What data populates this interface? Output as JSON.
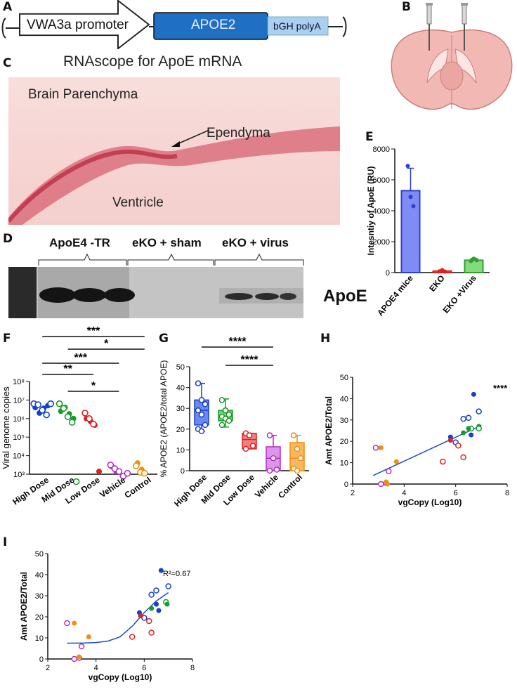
{
  "panels": {
    "A": {
      "label": "A",
      "promoter": "VWA3a promoter",
      "gene": "APOE2",
      "polya": "bGH polyA",
      "colors": {
        "gene": "#1f6fc4",
        "polya": "#a9d0ee"
      }
    },
    "B": {
      "label": "B"
    },
    "C": {
      "label": "C",
      "title": "RNAscope for ApoE mRNA",
      "parenchyma": "Brain Parenchyma",
      "ependyma": "Ependyma",
      "ventricle": "Ventricle"
    },
    "D": {
      "label": "D",
      "groups": [
        "ApoE4 -TR",
        "eKO + sham",
        "eKO + virus"
      ],
      "band_label": "ApoE"
    },
    "E": {
      "label": "E"
    },
    "F": {
      "label": "F",
      "sig": [
        "***",
        "*",
        "***",
        "**",
        "*"
      ]
    },
    "G": {
      "label": "G",
      "sig": [
        "****",
        "****"
      ]
    },
    "H": {
      "label": "H",
      "sig": "****"
    },
    "I": {
      "label": "I",
      "r2": "R²=0.67"
    }
  },
  "chart_data": [
    {
      "id": "E",
      "type": "bar",
      "ylabel": "Intesntiy of ApoE (RU)",
      "categories": [
        "APOE4 mice",
        "EKO",
        "EKO +Virus"
      ],
      "values": [
        5300,
        100,
        800
      ],
      "errors": [
        1450,
        60,
        120
      ],
      "points": [
        [
          6900,
          4900,
          4300
        ],
        [
          80,
          160,
          60
        ],
        [
          750,
          900,
          800
        ]
      ],
      "colors": [
        "#2b3fd0",
        "#e02020",
        "#2fa02f"
      ],
      "fills": [
        "#7f8cf4",
        "#f08080",
        "#86d97c"
      ],
      "ylim": [
        0,
        8000
      ],
      "yticks": [
        "0",
        "2000",
        "4000",
        "6000",
        "8000"
      ]
    },
    {
      "id": "F",
      "type": "scatter",
      "ylabel": "Viral genome copies",
      "yscale": "log",
      "categories": [
        "High Dose",
        "Mid Dose",
        "Low Dose",
        "Vehicle",
        "Control"
      ],
      "yticks": [
        "10³",
        "10⁴",
        "10⁵",
        "10⁶",
        "10⁷",
        "10⁸"
      ],
      "colors": [
        "#1540c8",
        "#1a9a2a",
        "#e02020",
        "#b030c0",
        "#f0900a"
      ],
      "groups": [
        {
          "filled": [
            6.6,
            6.3,
            6.55,
            6.7
          ],
          "open": [
            6.8,
            6.75,
            6.45,
            6.2,
            6.8
          ]
        },
        {
          "filled": [
            6.4,
            6.6,
            6.25,
            6.0
          ],
          "open": [
            6.8,
            6.55,
            6.1,
            5.8,
            2.6
          ]
        },
        {
          "filled": [
            6.0,
            5.85,
            5.65,
            3.15
          ],
          "open": [
            6.3,
            6.0,
            5.7
          ]
        },
        {
          "filled": [
            3.4,
            3.15
          ],
          "open": [
            3.5,
            3.3,
            3.15,
            2.9,
            3.05
          ]
        },
        {
          "filled": [
            3.6,
            3.25
          ],
          "open": [
            3.45,
            3.1,
            3.05
          ]
        }
      ]
    },
    {
      "id": "G",
      "type": "box",
      "ylabel": "% APOE2 (APOE2/total APOE)",
      "categories": [
        "High Dose",
        "Mid Dose",
        "Low Dose",
        "Vehicle",
        "Control"
      ],
      "ylim": [
        0,
        50
      ],
      "yticks": [
        "0",
        "10",
        "20",
        "30",
        "40",
        "50"
      ],
      "colors": [
        "#1540c8",
        "#1a9a2a",
        "#e02020",
        "#b030c0",
        "#f0900a"
      ],
      "fills": [
        "#6d88ee",
        "#6cd37c",
        "#f27f7f",
        "#dd94ea",
        "#f7b766"
      ],
      "boxes": [
        {
          "min": 19,
          "q1": 22,
          "median": 29,
          "q3": 34,
          "max": 42,
          "points": [
            42,
            34,
            32,
            29,
            27,
            22,
            20,
            19
          ]
        },
        {
          "min": 21,
          "q1": 24,
          "median": 26,
          "q3": 29,
          "max": 34.5,
          "points": [
            34,
            29,
            27,
            26,
            25,
            24,
            22
          ]
        },
        {
          "min": 10.5,
          "q1": 10.5,
          "median": 15,
          "q3": 18,
          "max": 18,
          "points": [
            18,
            17,
            12,
            10.5
          ]
        },
        {
          "min": 0,
          "q1": 0,
          "median": 6,
          "q3": 11.5,
          "max": 17,
          "points": [
            17,
            6,
            0.5,
            0
          ]
        },
        {
          "min": 0,
          "q1": 0,
          "median": 6,
          "q3": 13.5,
          "max": 17,
          "points": [
            17,
            10.5,
            6,
            1,
            0
          ]
        }
      ]
    },
    {
      "id": "H",
      "type": "scatter",
      "xlabel": "vgCopy (Log10)",
      "ylabel": "Amt APOE2/Total",
      "xlim": [
        2,
        8
      ],
      "ylim": [
        0,
        50
      ],
      "xticks": [
        "2",
        "4",
        "6",
        "8"
      ],
      "yticks": [
        "0",
        "10",
        "20",
        "30",
        "40",
        "50"
      ],
      "points": [
        {
          "x": 6.7,
          "y": 42,
          "c": "#1540c8",
          "f": true
        },
        {
          "x": 6.5,
          "y": 31,
          "c": "#1540c8",
          "f": false
        },
        {
          "x": 6.9,
          "y": 34,
          "c": "#1540c8",
          "f": false
        },
        {
          "x": 6.3,
          "y": 30.5,
          "c": "#1540c8",
          "f": false
        },
        {
          "x": 6.5,
          "y": 26,
          "c": "#1540c8",
          "f": true
        },
        {
          "x": 6.6,
          "y": 23,
          "c": "#1540c8",
          "f": true
        },
        {
          "x": 5.8,
          "y": 22,
          "c": "#1540c8",
          "f": true
        },
        {
          "x": 6.0,
          "y": 19.5,
          "c": "#1540c8",
          "f": false
        },
        {
          "x": 6.9,
          "y": 27,
          "c": "#1a9a2a",
          "f": true
        },
        {
          "x": 6.9,
          "y": 26,
          "c": "#1a9a2a",
          "f": false
        },
        {
          "x": 6.6,
          "y": 26,
          "c": "#1a9a2a",
          "f": false
        },
        {
          "x": 6.5,
          "y": 26,
          "c": "#1a9a2a",
          "f": true
        },
        {
          "x": 6.3,
          "y": 24,
          "c": "#1a9a2a",
          "f": true
        },
        {
          "x": 5.8,
          "y": 20.5,
          "c": "#e02020",
          "f": true
        },
        {
          "x": 6.1,
          "y": 18,
          "c": "#e02020",
          "f": false
        },
        {
          "x": 6.3,
          "y": 12.5,
          "c": "#e02020",
          "f": false
        },
        {
          "x": 5.5,
          "y": 10.5,
          "c": "#e02020",
          "f": false
        },
        {
          "x": 2.9,
          "y": 17,
          "c": "#b030c0",
          "f": false
        },
        {
          "x": 3.4,
          "y": 6,
          "c": "#b030c0",
          "f": false
        },
        {
          "x": 3.1,
          "y": 0,
          "c": "#b030c0",
          "f": false
        },
        {
          "x": 3.3,
          "y": 0.5,
          "c": "#b030c0",
          "f": false
        },
        {
          "x": 3.1,
          "y": 17,
          "c": "#f0900a",
          "f": true
        },
        {
          "x": 3.7,
          "y": 10.5,
          "c": "#f0900a",
          "f": true
        },
        {
          "x": 3.3,
          "y": 1,
          "c": "#f0900a",
          "f": true
        },
        {
          "x": 3.35,
          "y": 0,
          "c": "#f0900a",
          "f": true
        }
      ],
      "fit": {
        "x": [
          2.8,
          7.0
        ],
        "y": [
          4,
          27.5
        ],
        "color": "#1a4ec8"
      }
    },
    {
      "id": "I",
      "type": "scatter",
      "xlabel": "vgCopy (Log10)",
      "ylabel": "Amt APOE2/Total",
      "xlim": [
        2,
        8
      ],
      "ylim": [
        0,
        50
      ],
      "xticks": [
        "2",
        "4",
        "6",
        "8"
      ],
      "yticks": [
        "0",
        "10",
        "20",
        "30",
        "40",
        "50"
      ],
      "points": [
        {
          "x": 6.7,
          "y": 42,
          "c": "#1540c8",
          "f": true
        },
        {
          "x": 6.5,
          "y": 32.5,
          "c": "#1540c8",
          "f": false
        },
        {
          "x": 7.0,
          "y": 34.5,
          "c": "#1540c8",
          "f": false
        },
        {
          "x": 6.3,
          "y": 30.5,
          "c": "#1540c8",
          "f": false
        },
        {
          "x": 6.5,
          "y": 26,
          "c": "#1540c8",
          "f": true
        },
        {
          "x": 6.6,
          "y": 23,
          "c": "#1540c8",
          "f": true
        },
        {
          "x": 5.8,
          "y": 22,
          "c": "#1540c8",
          "f": true
        },
        {
          "x": 6.0,
          "y": 19.5,
          "c": "#1540c8",
          "f": false
        },
        {
          "x": 6.9,
          "y": 27,
          "c": "#1a9a2a",
          "f": false
        },
        {
          "x": 6.95,
          "y": 26,
          "c": "#1a9a2a",
          "f": true
        },
        {
          "x": 6.3,
          "y": 24,
          "c": "#1a9a2a",
          "f": true
        },
        {
          "x": 5.85,
          "y": 20.5,
          "c": "#e02020",
          "f": true
        },
        {
          "x": 6.2,
          "y": 18,
          "c": "#e02020",
          "f": false
        },
        {
          "x": 6.3,
          "y": 12.5,
          "c": "#e02020",
          "f": false
        },
        {
          "x": 5.5,
          "y": 10.5,
          "c": "#e02020",
          "f": false
        },
        {
          "x": 2.8,
          "y": 17,
          "c": "#b030c0",
          "f": false
        },
        {
          "x": 3.4,
          "y": 6,
          "c": "#b030c0",
          "f": false
        },
        {
          "x": 3.1,
          "y": 0,
          "c": "#b030c0",
          "f": false
        },
        {
          "x": 3.3,
          "y": 0.5,
          "c": "#b030c0",
          "f": false
        },
        {
          "x": 3.1,
          "y": 17,
          "c": "#f0900a",
          "f": true
        },
        {
          "x": 3.7,
          "y": 10.5,
          "c": "#f0900a",
          "f": true
        },
        {
          "x": 3.3,
          "y": 1,
          "c": "#f0900a",
          "f": true
        }
      ],
      "fit": {
        "type": "sigmoid",
        "x": [
          2.8,
          3.5,
          4.0,
          4.5,
          5.0,
          5.5,
          6.0,
          6.5,
          7.0
        ],
        "y": [
          7.5,
          7.6,
          7.8,
          8.5,
          10.5,
          15.5,
          22,
          27.5,
          31.5
        ],
        "color": "#1a4ec8"
      }
    }
  ]
}
